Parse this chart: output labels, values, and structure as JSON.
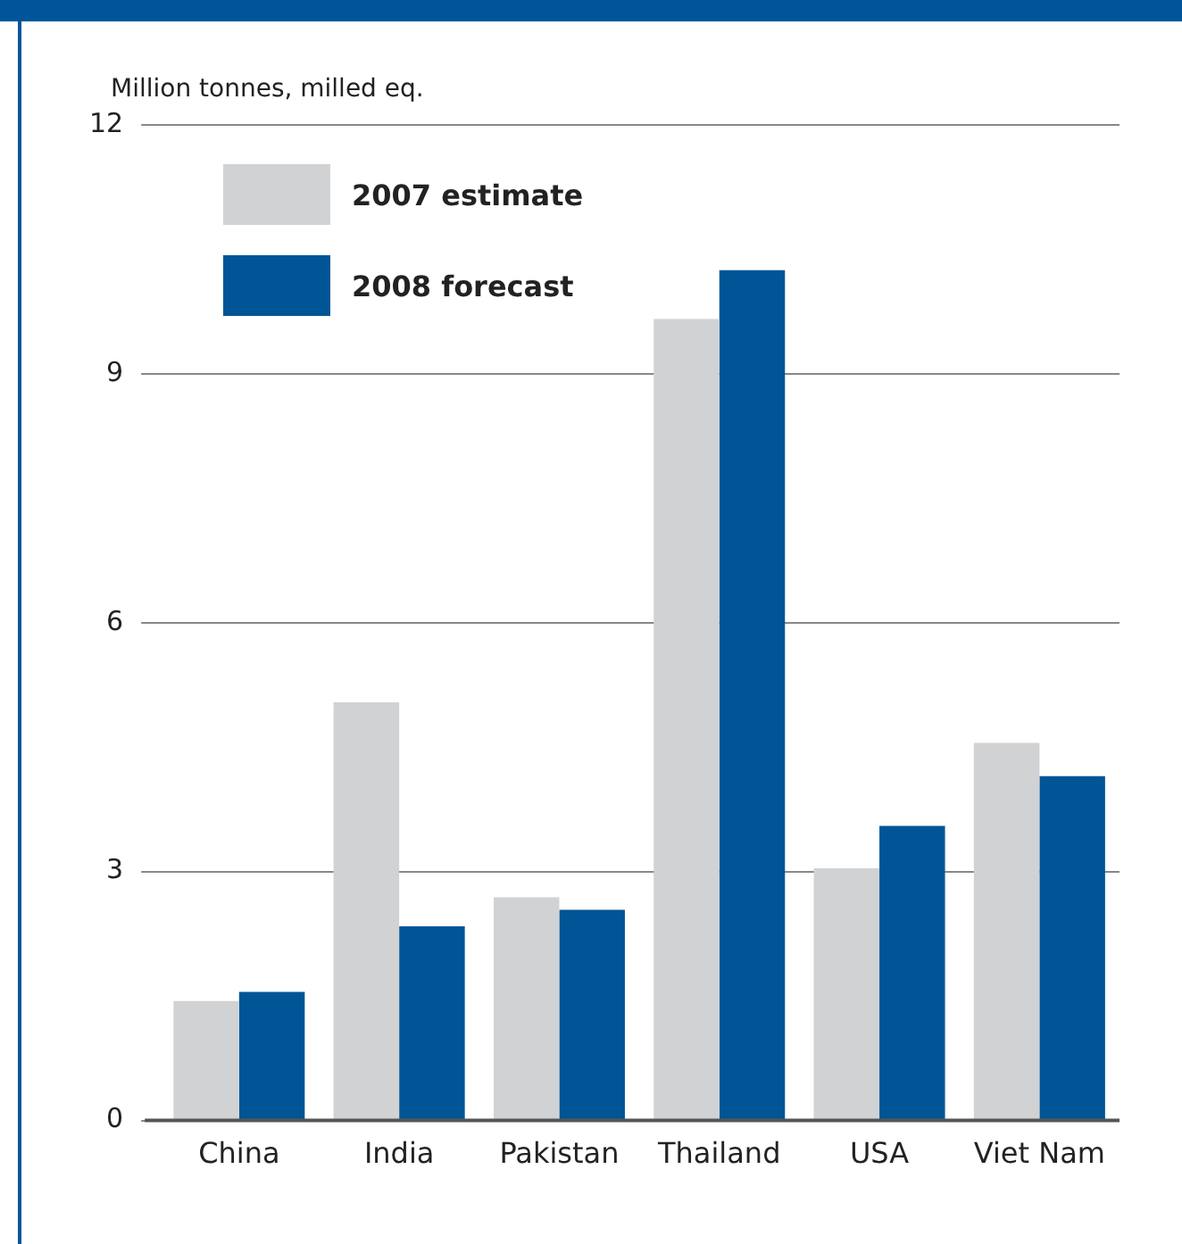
{
  "chart_data": {
    "type": "bar",
    "ylabel": "Million tonnes, milled eq.",
    "categories": [
      "China",
      "India",
      "Pakistan",
      "Thailand",
      "USA",
      "Viet Nam"
    ],
    "series": [
      {
        "name": "2007 estimate",
        "color": "#d1d2d4",
        "values": [
          1.44,
          5.04,
          2.69,
          9.66,
          3.04,
          4.55
        ]
      },
      {
        "name": "2008 forecast",
        "color": "#005596",
        "values": [
          1.55,
          2.34,
          2.54,
          10.25,
          3.55,
          4.15
        ]
      }
    ],
    "ylim": [
      0,
      12
    ],
    "yticks": [
      0,
      3,
      6,
      9,
      12
    ],
    "grid": "y",
    "legend": "top left"
  }
}
